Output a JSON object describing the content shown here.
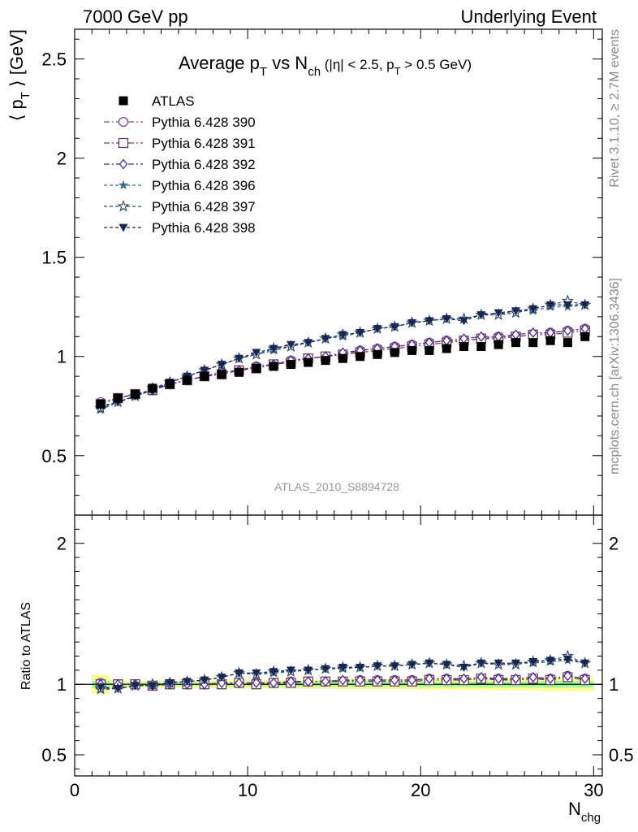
{
  "header": {
    "left": "7000 GeV pp",
    "right": "Underlying Event"
  },
  "side_labels": {
    "rivet": "Rivet 3.1.10, ≥ 2.7M events",
    "mcplots": "mcplots.cern.ch [arXiv:1306.3436]"
  },
  "main_panel": {
    "title": {
      "p1": "Average p",
      "s1": "T",
      "p2": " vs N",
      "s2": "ch",
      "p3": " (|η| < 2.5, p",
      "s3": "T",
      "p4": " > 0.5 GeV)"
    },
    "ylabel": {
      "p1": "⟨ p",
      "s1": "T",
      "p2": " ⟩ [GeV]"
    },
    "watermark": "ATLAS_2010_S8894728"
  },
  "ratio_panel": {
    "ylabel": "Ratio to ATLAS"
  },
  "xlabel": {
    "p1": "N",
    "s1": "chg"
  },
  "chart_data": [
    {
      "type": "scatter",
      "panel": "main",
      "xlim": [
        0,
        30.5
      ],
      "ylim": [
        0.2,
        2.65
      ],
      "x_ticks": [
        0,
        10,
        20,
        30
      ],
      "y_ticks": [
        0.5,
        1,
        1.5,
        2,
        2.5
      ],
      "y_tick_labels": [
        "0.5",
        "1",
        "1.5",
        "2",
        "2.5"
      ],
      "x": [
        1.5,
        2.5,
        3.5,
        4.5,
        5.5,
        6.5,
        7.5,
        8.5,
        9.5,
        10.5,
        11.5,
        12.5,
        13.5,
        14.5,
        15.5,
        16.5,
        17.5,
        18.5,
        19.5,
        20.5,
        21.5,
        22.5,
        23.5,
        24.5,
        25.5,
        26.5,
        27.5,
        28.5,
        29.5
      ],
      "series": [
        {
          "name": "ATLAS",
          "color": "#000000",
          "marker": "square-filled",
          "values": [
            0.76,
            0.79,
            0.81,
            0.84,
            0.86,
            0.88,
            0.9,
            0.91,
            0.92,
            0.94,
            0.95,
            0.96,
            0.97,
            0.98,
            0.99,
            1.0,
            1.01,
            1.02,
            1.03,
            1.03,
            1.04,
            1.05,
            1.05,
            1.06,
            1.07,
            1.07,
            1.08,
            1.07,
            1.1
          ]
        },
        {
          "name": "Pythia 6.428 390",
          "color": "#7b4f8e",
          "marker": "circle-open",
          "dash": "7,3,2,3",
          "values": [
            0.77,
            0.79,
            0.81,
            0.83,
            0.86,
            0.88,
            0.9,
            0.92,
            0.93,
            0.95,
            0.96,
            0.98,
            0.99,
            1.0,
            1.01,
            1.03,
            1.04,
            1.05,
            1.06,
            1.07,
            1.08,
            1.08,
            1.09,
            1.1,
            1.1,
            1.11,
            1.12,
            1.13,
            1.14
          ]
        },
        {
          "name": "Pythia 6.428 391",
          "color": "#6b3a55",
          "marker": "square-open",
          "dash": "7,3,2,3",
          "values": [
            0.76,
            0.79,
            0.81,
            0.83,
            0.86,
            0.88,
            0.9,
            0.91,
            0.93,
            0.94,
            0.96,
            0.97,
            0.99,
            1.0,
            1.01,
            1.02,
            1.03,
            1.04,
            1.05,
            1.06,
            1.07,
            1.08,
            1.09,
            1.09,
            1.1,
            1.11,
            1.11,
            1.12,
            1.13
          ]
        },
        {
          "name": "Pythia 6.428 392",
          "color": "#4a2a8c",
          "marker": "diamond-open",
          "dash": "7,3,2,3",
          "values": [
            0.76,
            0.79,
            0.81,
            0.83,
            0.86,
            0.88,
            0.9,
            0.92,
            0.93,
            0.95,
            0.96,
            0.98,
            0.99,
            1.0,
            1.02,
            1.03,
            1.04,
            1.05,
            1.06,
            1.07,
            1.08,
            1.09,
            1.1,
            1.1,
            1.11,
            1.12,
            1.12,
            1.13,
            1.14
          ]
        },
        {
          "name": "Pythia 6.428 396",
          "color": "#3d6e8a",
          "marker": "star-filled",
          "dash": "4,3",
          "values": [
            0.73,
            0.77,
            0.8,
            0.83,
            0.87,
            0.9,
            0.93,
            0.96,
            0.99,
            1.01,
            1.03,
            1.05,
            1.07,
            1.09,
            1.1,
            1.12,
            1.14,
            1.15,
            1.17,
            1.18,
            1.19,
            1.19,
            1.21,
            1.21,
            1.23,
            1.23,
            1.25,
            1.25,
            1.26
          ]
        },
        {
          "name": "Pythia 6.428 397",
          "color": "#2e4e6e",
          "marker": "star-open",
          "dash": "4,3",
          "values": [
            0.74,
            0.77,
            0.8,
            0.84,
            0.87,
            0.9,
            0.93,
            0.96,
            0.99,
            1.01,
            1.04,
            1.05,
            1.07,
            1.09,
            1.11,
            1.12,
            1.14,
            1.15,
            1.17,
            1.18,
            1.19,
            1.19,
            1.21,
            1.21,
            1.22,
            1.24,
            1.26,
            1.28,
            1.26
          ]
        },
        {
          "name": "Pythia 6.428 398",
          "color": "#1a2550",
          "marker": "triangle-down-filled",
          "dash": "4,3",
          "values": [
            0.75,
            0.77,
            0.8,
            0.83,
            0.87,
            0.9,
            0.93,
            0.96,
            0.99,
            1.02,
            1.04,
            1.06,
            1.07,
            1.09,
            1.11,
            1.12,
            1.14,
            1.15,
            1.17,
            1.18,
            1.19,
            1.18,
            1.21,
            1.22,
            1.23,
            1.24,
            1.26,
            1.26,
            1.26
          ]
        }
      ],
      "legend": "top-left"
    },
    {
      "type": "scatter",
      "panel": "ratio",
      "xlim": [
        0,
        30.5
      ],
      "ylim": [
        0.35,
        2.2
      ],
      "x_ticks": [
        0,
        10,
        20,
        30
      ],
      "x_tick_labels": [
        "0",
        "10",
        "20",
        "30"
      ],
      "y_ticks": [
        0.5,
        1,
        2
      ],
      "y_tick_labels": [
        "0.5",
        "1",
        "2"
      ],
      "reference_line": 1,
      "bands": {
        "x_edges": [
          1,
          2,
          3,
          4,
          5,
          6,
          7,
          8,
          9,
          10,
          11,
          12,
          13,
          14,
          15,
          16,
          17,
          18,
          19,
          20,
          21,
          22,
          23,
          24,
          25,
          26,
          27,
          28,
          29,
          30
        ],
        "yellow_half_width": [
          0.07,
          0.03,
          0.025,
          0.025,
          0.025,
          0.025,
          0.025,
          0.03,
          0.03,
          0.03,
          0.03,
          0.03,
          0.03,
          0.03,
          0.035,
          0.035,
          0.035,
          0.035,
          0.035,
          0.04,
          0.04,
          0.04,
          0.04,
          0.045,
          0.045,
          0.045,
          0.05,
          0.05,
          0.05
        ],
        "green_half_width": [
          0.025,
          0.012,
          0.012,
          0.012,
          0.012,
          0.012,
          0.012,
          0.012,
          0.012,
          0.014,
          0.014,
          0.014,
          0.015,
          0.015,
          0.015,
          0.016,
          0.016,
          0.017,
          0.017,
          0.018,
          0.018,
          0.018,
          0.019,
          0.02,
          0.02,
          0.02,
          0.022,
          0.022,
          0.022
        ],
        "yellow_color": "#ffff99",
        "green_color": "#99ff99"
      },
      "x": [
        1.5,
        2.5,
        3.5,
        4.5,
        5.5,
        6.5,
        7.5,
        8.5,
        9.5,
        10.5,
        11.5,
        12.5,
        13.5,
        14.5,
        15.5,
        16.5,
        17.5,
        18.5,
        19.5,
        20.5,
        21.5,
        22.5,
        23.5,
        24.5,
        25.5,
        26.5,
        27.5,
        28.5,
        29.5
      ],
      "series": [
        {
          "name": "Pythia 6.428 390",
          "values": [
            1.01,
            1.0,
            1.0,
            0.99,
            1.0,
            1.0,
            1.0,
            1.01,
            1.01,
            1.01,
            1.01,
            1.02,
            1.02,
            1.02,
            1.02,
            1.03,
            1.03,
            1.03,
            1.03,
            1.04,
            1.04,
            1.03,
            1.04,
            1.04,
            1.03,
            1.04,
            1.04,
            1.06,
            1.04
          ]
        },
        {
          "name": "Pythia 6.428 391",
          "values": [
            1.0,
            1.0,
            1.0,
            0.99,
            1.0,
            1.0,
            1.0,
            1.0,
            1.01,
            1.0,
            1.01,
            1.01,
            1.02,
            1.02,
            1.02,
            1.02,
            1.02,
            1.02,
            1.02,
            1.03,
            1.03,
            1.03,
            1.04,
            1.03,
            1.03,
            1.04,
            1.03,
            1.05,
            1.03
          ]
        },
        {
          "name": "Pythia 6.428 392",
          "values": [
            1.0,
            1.0,
            1.0,
            0.99,
            1.0,
            1.0,
            1.0,
            1.01,
            1.01,
            1.01,
            1.01,
            1.02,
            1.02,
            1.02,
            1.03,
            1.03,
            1.03,
            1.03,
            1.03,
            1.04,
            1.04,
            1.04,
            1.05,
            1.04,
            1.04,
            1.05,
            1.04,
            1.06,
            1.04
          ]
        },
        {
          "name": "Pythia 6.428 396",
          "values": [
            0.96,
            0.97,
            0.99,
            0.99,
            1.01,
            1.02,
            1.03,
            1.05,
            1.08,
            1.07,
            1.08,
            1.09,
            1.1,
            1.11,
            1.11,
            1.12,
            1.13,
            1.13,
            1.14,
            1.15,
            1.14,
            1.13,
            1.15,
            1.14,
            1.15,
            1.15,
            1.16,
            1.17,
            1.15
          ]
        },
        {
          "name": "Pythia 6.428 397",
          "values": [
            0.97,
            0.97,
            0.99,
            1.0,
            1.01,
            1.02,
            1.03,
            1.05,
            1.08,
            1.07,
            1.09,
            1.09,
            1.1,
            1.11,
            1.12,
            1.12,
            1.13,
            1.13,
            1.14,
            1.15,
            1.14,
            1.13,
            1.15,
            1.14,
            1.14,
            1.16,
            1.17,
            1.2,
            1.15
          ]
        },
        {
          "name": "Pythia 6.428 398",
          "values": [
            0.98,
            0.97,
            0.99,
            0.99,
            1.01,
            1.02,
            1.03,
            1.05,
            1.08,
            1.08,
            1.09,
            1.1,
            1.1,
            1.11,
            1.12,
            1.12,
            1.13,
            1.13,
            1.14,
            1.15,
            1.14,
            1.12,
            1.15,
            1.15,
            1.15,
            1.16,
            1.17,
            1.18,
            1.15
          ]
        }
      ]
    }
  ]
}
